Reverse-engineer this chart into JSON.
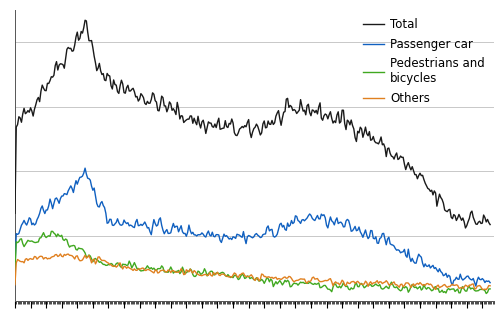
{
  "line_colors": {
    "Total": "#1a1a1a",
    "Passenger car": "#1060c0",
    "Pedestrians and bicycles": "#40a820",
    "Others": "#e08020"
  },
  "line_widths": {
    "Total": 1.0,
    "Passenger car": 1.0,
    "Pedestrians and bicycles": 1.0,
    "Others": 1.0
  },
  "ylim": [
    0,
    900
  ],
  "xlim_start": 1985.0,
  "xlim_end": 2015.75,
  "grid_color": "#c8c8c8",
  "background_color": "#ffffff",
  "ytick_values": [
    0,
    200,
    400,
    600,
    800
  ],
  "legend_fontsize": 8.5,
  "legend_entries": [
    "Total",
    "Passenger car",
    "Pedestrians and\nbicycles",
    "Others"
  ]
}
